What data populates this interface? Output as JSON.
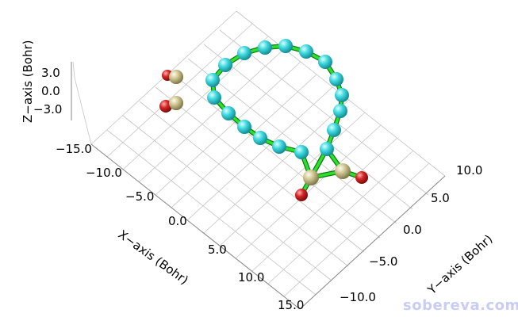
{
  "axes": {
    "x": {
      "title": "X−axis (Bohr)",
      "ticks": [
        "−15.0",
        "−10.0",
        "−5.0",
        "0.0",
        "5.0",
        "10.0",
        "15.0"
      ]
    },
    "y": {
      "title": "Y−axis (Bohr)",
      "ticks": [
        "10.0",
        "5.0",
        "0.0",
        "−5.0",
        "−10.0"
      ]
    },
    "z": {
      "title": "Z−axis (Bohr)",
      "ticks": [
        "3.0",
        "0.0",
        "−3.0"
      ]
    }
  },
  "watermark": "sobereva.com",
  "colors": {
    "carbon": "#3ed8de",
    "carbon_highlight": "#c8ffff",
    "oxygen": "#d32323",
    "oxygen_highlight": "#ff9a9a",
    "sulfur_like": "#c8c08a",
    "sulfur_like_highlight": "#fffbe0",
    "bond": "#18c818",
    "grid": "#c4c4c4",
    "watermark": "#c9cdf3"
  }
}
